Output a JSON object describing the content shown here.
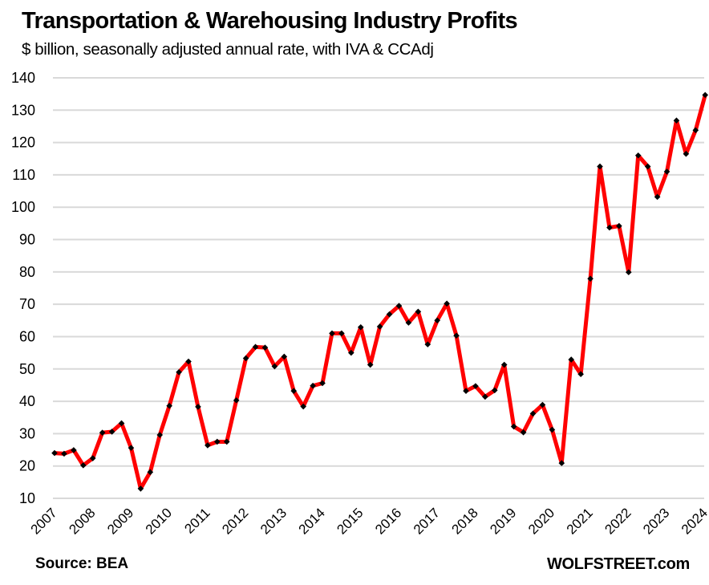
{
  "header": {
    "title": "Transportation & Warehousing  Industry Profits",
    "subtitle": "$ billion, seasonally adjusted annual rate, with IVA & CCAdj"
  },
  "footer": {
    "source": "Source: BEA",
    "brand": "WOLFSTREET.com"
  },
  "colors": {
    "line": "#ff0000",
    "marker": "#000000",
    "grid": "#d9d9d9"
  },
  "chart_data": {
    "type": "line",
    "title": "Transportation & Warehousing  Industry Profits",
    "subtitle": "$ billion, seasonally adjusted annual rate, with IVA & CCAdj",
    "xlabel": "",
    "ylabel": "",
    "ylim": [
      10,
      140
    ],
    "yticks": [
      10,
      20,
      30,
      40,
      50,
      60,
      70,
      80,
      90,
      100,
      110,
      120,
      130,
      140
    ],
    "xticks": [
      "2007",
      "2008",
      "2009",
      "2010",
      "2011",
      "2012",
      "2013",
      "2014",
      "2015",
      "2016",
      "2017",
      "2018",
      "2019",
      "2020",
      "2021",
      "2022",
      "2023",
      "2024"
    ],
    "grid": true,
    "legend": "none",
    "x_frequency": "quarterly",
    "x_start": "2007Q1",
    "x_end": "2024Q1",
    "series": [
      {
        "name": "Transportation & Warehousing Profits",
        "values": [
          24.0,
          23.8,
          24.9,
          20.2,
          22.4,
          30.3,
          30.6,
          33.2,
          25.6,
          13.0,
          18.1,
          29.6,
          38.6,
          49.0,
          52.3,
          38.3,
          26.4,
          27.5,
          27.5,
          40.3,
          53.3,
          56.8,
          56.6,
          50.8,
          53.8,
          43.2,
          38.4,
          44.8,
          45.6,
          61.0,
          61.0,
          55.0,
          62.9,
          51.3,
          63.1,
          66.9,
          69.5,
          64.3,
          67.7,
          57.6,
          65.0,
          70.2,
          60.3,
          43.2,
          44.7,
          41.4,
          43.4,
          51.3,
          32.2,
          30.4,
          36.2,
          38.9,
          31.2,
          20.9,
          52.9,
          48.4,
          77.9,
          112.6,
          93.7,
          94.2,
          79.9,
          116.0,
          112.6,
          103.2,
          111.0,
          126.8,
          116.5,
          123.8,
          134.7
        ]
      }
    ]
  }
}
